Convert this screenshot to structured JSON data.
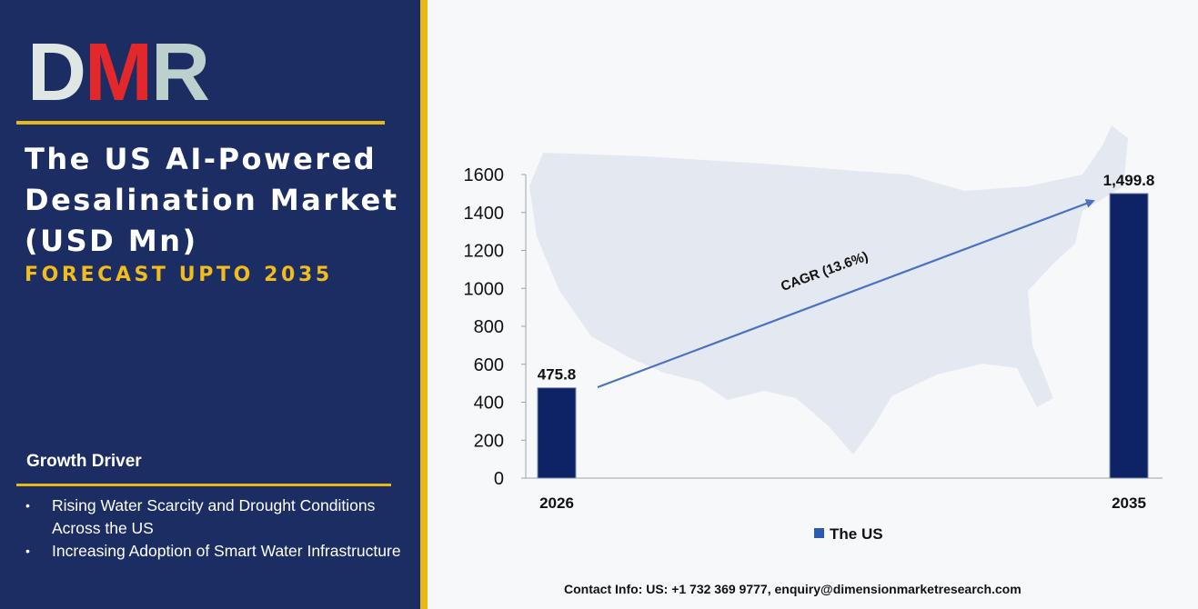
{
  "brand": {
    "logo_text": "DMR",
    "colors": {
      "panel": "#1b2d63",
      "gold": "#e8b818",
      "logo_red": "#e3282b",
      "bar": "#0e2266",
      "arrow": "#4a72c0"
    }
  },
  "panel": {
    "title": "The US AI-Powered Desalination Market (USD Mn)",
    "subtitle": "FORECAST UPTO 2035",
    "growth_driver": {
      "heading": "Growth Driver",
      "items": [
        "Rising Water Scarcity and Drought Conditions Across the US",
        "Increasing Adoption of Smart Water Infrastructure"
      ]
    }
  },
  "chart_data": {
    "type": "bar",
    "categories": [
      "2026",
      "2035"
    ],
    "series": [
      {
        "name": "The US",
        "values": [
          475.8,
          1499.8
        ]
      }
    ],
    "data_labels": [
      "475.8",
      "1,499.8"
    ],
    "ylim": [
      0,
      1600
    ],
    "yticks": [
      0,
      200,
      400,
      600,
      800,
      1000,
      1200,
      1400,
      1600
    ],
    "annotation": "CAGR (13.6%)",
    "legend_position": "bottom",
    "background": "US map silhouette",
    "grid": false
  },
  "footer": {
    "contact": "Contact Info: US: +1 732 369 9777, enquiry@dimensionmarketresearch.com"
  }
}
